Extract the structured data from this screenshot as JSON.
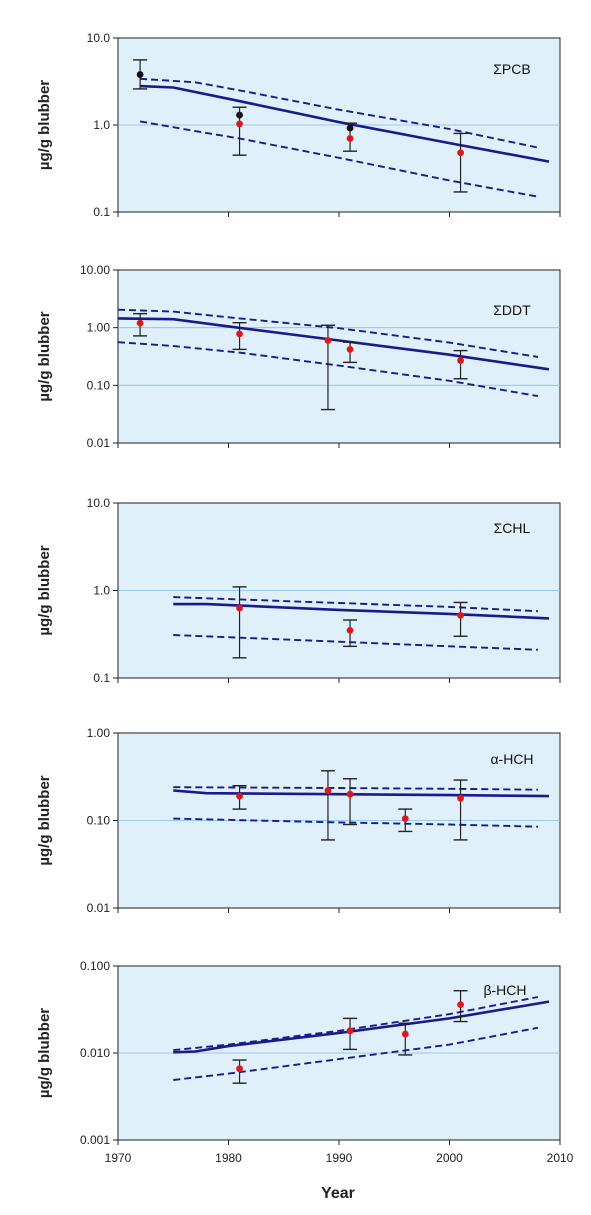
{
  "figure": {
    "xlabel": "Year",
    "x_ticks": [
      "1970",
      "1980",
      "1990",
      "2000",
      "2010"
    ],
    "colors": {
      "panel_bg": "#dff0fa",
      "gridline": "#7ec3e8",
      "trend": "#1a1a8c",
      "point_red": "#e0161b",
      "point_black": "#111111",
      "errorbar": "#222222",
      "axis": "#222222"
    }
  },
  "chart_data": [
    {
      "type": "line",
      "label": "ΣPCB",
      "ylabel": "µg/g blubber",
      "yscale": "log",
      "xlim": [
        1970,
        2010
      ],
      "ylim": [
        0.1,
        10
      ],
      "y_ticks": [
        "10.0",
        "1.0",
        "0.1"
      ],
      "y_tick_values": [
        10,
        1,
        0.1
      ],
      "grid": "horizontal at decades",
      "series": [
        {
          "role": "trend",
          "style": "solid",
          "x": [
            1972,
            1975,
            1980,
            1990,
            2000,
            2009
          ],
          "y": [
            2.8,
            2.7,
            2.0,
            1.08,
            0.62,
            0.38
          ]
        },
        {
          "role": "upper-ci",
          "style": "dashed",
          "x": [
            1972,
            1977,
            1981,
            1990,
            2000,
            2008
          ],
          "y": [
            3.4,
            3.1,
            2.5,
            1.5,
            0.9,
            0.55
          ]
        },
        {
          "role": "lower-ci",
          "style": "dashed",
          "x": [
            1972,
            1977,
            1981,
            1990,
            2000,
            2008
          ],
          "y": [
            1.1,
            0.85,
            0.7,
            0.42,
            0.23,
            0.15
          ]
        }
      ],
      "points": [
        {
          "x": 1972,
          "y": 3.8,
          "low": 2.6,
          "high": 5.6,
          "color": "black"
        },
        {
          "x": 1981,
          "y": 1.3,
          "color": "black"
        },
        {
          "x": 1981,
          "y": 1.03,
          "low": 0.45,
          "high": 1.6,
          "color": "red"
        },
        {
          "x": 1991,
          "y": 0.92,
          "low": 0.5,
          "high": 1.05,
          "color": "black"
        },
        {
          "x": 1991,
          "y": 0.7,
          "color": "red"
        },
        {
          "x": 2001,
          "y": 0.48,
          "low": 0.17,
          "high": 0.8,
          "color": "red"
        }
      ]
    },
    {
      "type": "line",
      "label": "ΣDDT",
      "ylabel": "µg/g blubber",
      "yscale": "log",
      "xlim": [
        1970,
        2010
      ],
      "ylim": [
        0.01,
        10
      ],
      "y_ticks": [
        "10.00",
        "1.00",
        "0.10",
        "0.01"
      ],
      "y_tick_values": [
        10,
        1,
        0.1,
        0.01
      ],
      "grid": "horizontal at decades",
      "series": [
        {
          "role": "trend",
          "style": "solid",
          "x": [
            1970,
            1975,
            1980,
            1990,
            2000,
            2009
          ],
          "y": [
            1.45,
            1.4,
            1.05,
            0.6,
            0.34,
            0.19
          ]
        },
        {
          "role": "upper-ci",
          "style": "dashed",
          "x": [
            1970,
            1975,
            1981,
            1990,
            2000,
            2008
          ],
          "y": [
            2.05,
            1.9,
            1.45,
            0.98,
            0.55,
            0.31
          ]
        },
        {
          "role": "lower-ci",
          "style": "dashed",
          "x": [
            1970,
            1975,
            1981,
            1990,
            2000,
            2008
          ],
          "y": [
            0.56,
            0.48,
            0.37,
            0.22,
            0.12,
            0.065
          ]
        }
      ],
      "points": [
        {
          "x": 1972,
          "y": 1.2,
          "low": 0.72,
          "high": 1.75,
          "color": "red"
        },
        {
          "x": 1981,
          "y": 0.78,
          "low": 0.42,
          "high": 1.22,
          "color": "red"
        },
        {
          "x": 1989,
          "y": 0.6,
          "low": 0.038,
          "high": 1.1,
          "color": "red"
        },
        {
          "x": 1991,
          "y": 0.42,
          "low": 0.25,
          "high": 0.56,
          "color": "red"
        },
        {
          "x": 2001,
          "y": 0.27,
          "low": 0.13,
          "high": 0.4,
          "color": "red"
        }
      ]
    },
    {
      "type": "line",
      "label": "ΣCHL",
      "ylabel": "µg/g blubber",
      "yscale": "log",
      "xlim": [
        1970,
        2010
      ],
      "ylim": [
        0.1,
        10
      ],
      "y_ticks": [
        "10.0",
        "1.0",
        "0.1"
      ],
      "y_tick_values": [
        10,
        1,
        0.1
      ],
      "grid": "horizontal at decades",
      "series": [
        {
          "role": "trend",
          "style": "solid",
          "x": [
            1975,
            1978,
            1990,
            2000,
            2009
          ],
          "y": [
            0.7,
            0.7,
            0.6,
            0.54,
            0.48
          ]
        },
        {
          "role": "upper-ci",
          "style": "dashed",
          "x": [
            1975,
            1990,
            2000,
            2008
          ],
          "y": [
            0.84,
            0.72,
            0.65,
            0.58
          ]
        },
        {
          "role": "lower-ci",
          "style": "dashed",
          "x": [
            1975,
            1990,
            2000,
            2008
          ],
          "y": [
            0.31,
            0.26,
            0.23,
            0.21
          ]
        }
      ],
      "points": [
        {
          "x": 1981,
          "y": 0.63,
          "low": 0.17,
          "high": 1.1,
          "color": "red"
        },
        {
          "x": 1991,
          "y": 0.35,
          "low": 0.23,
          "high": 0.46,
          "color": "red"
        },
        {
          "x": 2001,
          "y": 0.52,
          "low": 0.3,
          "high": 0.73,
          "color": "red"
        }
      ]
    },
    {
      "type": "line",
      "label": "α-HCH",
      "ylabel": "µg/g blubber",
      "yscale": "log",
      "xlim": [
        1970,
        2010
      ],
      "ylim": [
        0.01,
        1
      ],
      "y_ticks": [
        "1.00",
        "0.10",
        "0.01"
      ],
      "y_tick_values": [
        1,
        0.1,
        0.01
      ],
      "grid": "horizontal at decades",
      "series": [
        {
          "role": "trend",
          "style": "solid",
          "x": [
            1975,
            1978,
            1990,
            2000,
            2009
          ],
          "y": [
            0.22,
            0.205,
            0.2,
            0.195,
            0.19
          ]
        },
        {
          "role": "upper-ci",
          "style": "dashed",
          "x": [
            1975,
            1990,
            2000,
            2008
          ],
          "y": [
            0.24,
            0.235,
            0.23,
            0.225
          ]
        },
        {
          "role": "lower-ci",
          "style": "dashed",
          "x": [
            1975,
            1990,
            2000,
            2008
          ],
          "y": [
            0.105,
            0.095,
            0.09,
            0.085
          ]
        }
      ],
      "points": [
        {
          "x": 1981,
          "y": 0.19,
          "low": 0.135,
          "high": 0.25,
          "color": "red"
        },
        {
          "x": 1989,
          "y": 0.22,
          "low": 0.06,
          "high": 0.37,
          "color": "red"
        },
        {
          "x": 1991,
          "y": 0.2,
          "low": 0.09,
          "high": 0.3,
          "color": "red"
        },
        {
          "x": 1996,
          "y": 0.105,
          "low": 0.075,
          "high": 0.135,
          "color": "red"
        },
        {
          "x": 2001,
          "y": 0.18,
          "low": 0.06,
          "high": 0.29,
          "color": "red"
        }
      ]
    },
    {
      "type": "line",
      "label": "β-HCH",
      "ylabel": "µg/g blubber",
      "yscale": "log",
      "xlim": [
        1970,
        2010
      ],
      "ylim": [
        0.001,
        0.1
      ],
      "y_ticks": [
        "0.100",
        "0.010",
        "0.001"
      ],
      "y_tick_values": [
        0.1,
        0.01,
        0.001
      ],
      "grid": "horizontal at decades",
      "series": [
        {
          "role": "trend",
          "style": "solid",
          "x": [
            1975,
            1977,
            1980,
            1990,
            2000,
            2009
          ],
          "y": [
            0.0102,
            0.0104,
            0.012,
            0.017,
            0.025,
            0.039
          ]
        },
        {
          "role": "upper-ci",
          "style": "dashed",
          "x": [
            1975,
            1980,
            1990,
            2000,
            2008
          ],
          "y": [
            0.0108,
            0.0125,
            0.018,
            0.028,
            0.044
          ]
        },
        {
          "role": "lower-ci",
          "style": "dashed",
          "x": [
            1975,
            1980,
            1990,
            2000,
            2008
          ],
          "y": [
            0.0049,
            0.0058,
            0.0085,
            0.0125,
            0.0195
          ]
        }
      ],
      "points": [
        {
          "x": 1981,
          "y": 0.0066,
          "low": 0.0045,
          "high": 0.0083,
          "color": "red"
        },
        {
          "x": 1991,
          "y": 0.018,
          "low": 0.011,
          "high": 0.025,
          "color": "red"
        },
        {
          "x": 1996,
          "y": 0.0165,
          "low": 0.0095,
          "high": 0.022,
          "color": "red"
        },
        {
          "x": 2001,
          "y": 0.036,
          "low": 0.023,
          "high": 0.052,
          "color": "red"
        }
      ]
    }
  ]
}
